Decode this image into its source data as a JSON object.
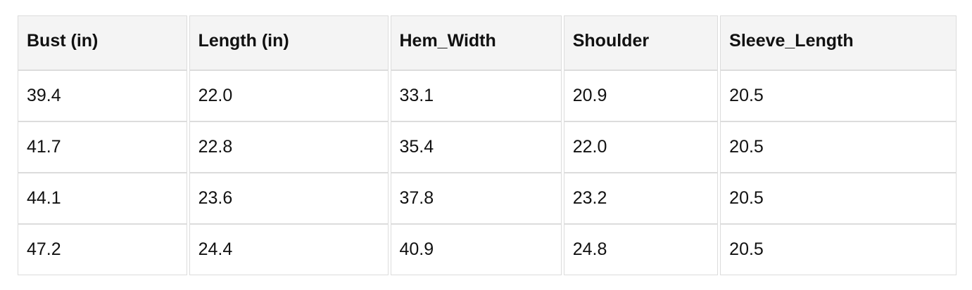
{
  "chart_data": {
    "type": "table",
    "title": "",
    "columns": [
      "Bust (in)",
      "Length (in)",
      "Hem_Width",
      "Shoulder",
      "Sleeve_Length"
    ],
    "rows": [
      [
        "39.4",
        "22.0",
        "33.1",
        "20.9",
        "20.5"
      ],
      [
        "41.7",
        "22.8",
        "35.4",
        "22.0",
        "20.5"
      ],
      [
        "44.1",
        "23.6",
        "37.8",
        "23.2",
        "20.5"
      ],
      [
        "47.2",
        "24.4",
        "40.9",
        "24.8",
        "20.5"
      ]
    ]
  },
  "colors": {
    "header_bg": "#f4f4f4",
    "border": "#dcdcdc",
    "text": "#111111",
    "row_bg": "#ffffff",
    "page_bg": "#ffffff"
  }
}
